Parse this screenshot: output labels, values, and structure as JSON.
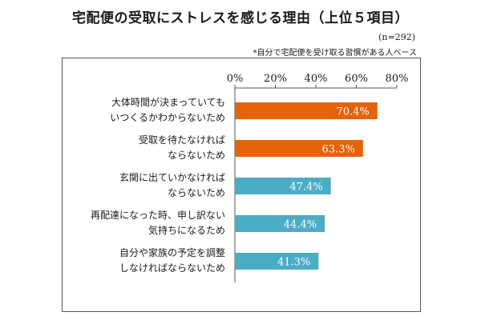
{
  "title": "宅配便の受取にストレスを感じる理由（上位５項目）",
  "sample_size": "(n=292)",
  "note": "*自分で宅配便を受け取る習慣がある人ベース",
  "colors": {
    "highlight": "#e8620a",
    "normal": "#4bacc6",
    "axis": "#555555",
    "frame": "#555555"
  },
  "chart_data": {
    "type": "bar",
    "orientation": "horizontal",
    "title": "宅配便の受取にストレスを感じる理由（上位５項目）",
    "xlim": [
      0,
      80
    ],
    "ticks": [
      "0%",
      "20%",
      "40%",
      "60%",
      "80%"
    ],
    "tick_values": [
      0,
      20,
      40,
      60,
      80
    ],
    "tick_position": "top",
    "grid": false,
    "categories": [
      [
        "大体時間が決まっていても",
        "いつくるかわからないため"
      ],
      [
        "受取を待たなければ",
        "ならないため"
      ],
      [
        "玄関に出ていかなければ",
        "ならないため"
      ],
      [
        "再配達になった時、申し訳ない",
        "気持ちになるため"
      ],
      [
        "自分や家族の予定を調整",
        "しなければならないため"
      ]
    ],
    "values": [
      70.4,
      63.3,
      47.4,
      44.4,
      41.3
    ],
    "labels": [
      "70.4%",
      "63.3%",
      "47.4%",
      "44.4%",
      "41.3%"
    ],
    "bar_colors": [
      "#e8620a",
      "#e8620a",
      "#4bacc6",
      "#4bacc6",
      "#4bacc6"
    ]
  }
}
